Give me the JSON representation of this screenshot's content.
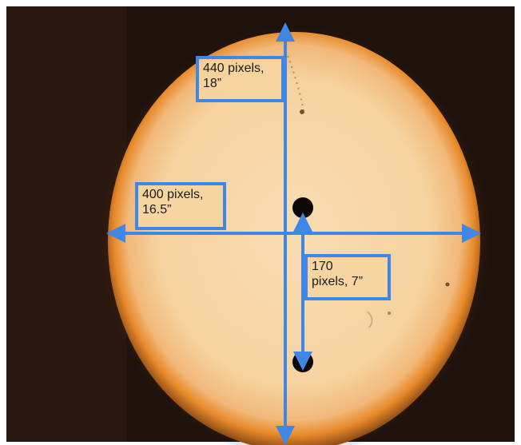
{
  "image": {
    "subject": "",
    "colors": {
      "background": "#1f120c",
      "disc": "#f6d5a0",
      "disc_edge": "#e88a2a",
      "arrow": "#3f86e6",
      "hole": "#0d0805"
    }
  },
  "annotations": {
    "vertical_measurement": "440 pixels,\n18”",
    "horizontal_measurement": "400 pixels,\n16.5”",
    "hole_spacing_measurement": "170\npixels, 7”"
  }
}
